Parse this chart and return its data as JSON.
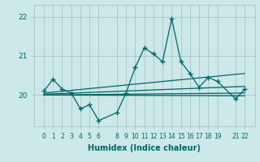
{
  "xlabel": "Humidex (Indice chaleur)",
  "bg_color": "#cce8e8",
  "grid_color": "#aacccc",
  "line_color": "#006666",
  "x_ticks": [
    0,
    1,
    2,
    3,
    4,
    5,
    6,
    8,
    9,
    10,
    11,
    12,
    13,
    14,
    15,
    16,
    17,
    18,
    19,
    21,
    22
  ],
  "humidex_x": [
    0,
    1,
    2,
    3,
    4,
    5,
    6,
    8,
    9,
    10,
    11,
    12,
    13,
    14,
    15,
    16,
    17,
    18,
    19,
    21,
    22
  ],
  "humidex_y": [
    20.1,
    20.4,
    20.15,
    20.05,
    19.65,
    19.75,
    19.35,
    19.55,
    20.05,
    20.7,
    21.2,
    21.05,
    20.85,
    21.95,
    20.85,
    20.55,
    20.2,
    20.45,
    20.35,
    19.9,
    20.15
  ],
  "ref_lines": [
    {
      "x": [
        0,
        22
      ],
      "y": [
        20.05,
        20.55
      ]
    },
    {
      "x": [
        0,
        22
      ],
      "y": [
        20.02,
        20.22
      ]
    },
    {
      "x": [
        0,
        22
      ],
      "y": [
        20.0,
        20.05
      ]
    },
    {
      "x": [
        0,
        22
      ],
      "y": [
        20.0,
        19.98
      ]
    }
  ],
  "ylim": [
    19.2,
    22.3
  ],
  "yticks": [
    20,
    21,
    22
  ]
}
